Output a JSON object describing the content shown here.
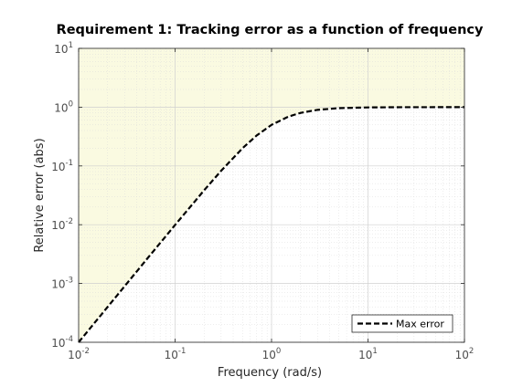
{
  "chart_data": {
    "type": "line",
    "title": "Requirement 1: Tracking error as a function of frequency",
    "xlabel": "Frequency (rad/s)",
    "ylabel": "Relative error (abs)",
    "xscale": "log",
    "yscale": "log",
    "xlim": [
      0.01,
      100
    ],
    "ylim": [
      0.0001,
      10
    ],
    "grid": true,
    "minor_grid": true,
    "x_ticks": [
      {
        "value": 0.01,
        "base": "10",
        "exp": "-2"
      },
      {
        "value": 0.1,
        "base": "10",
        "exp": "-1"
      },
      {
        "value": 1,
        "base": "10",
        "exp": "0"
      },
      {
        "value": 10,
        "base": "10",
        "exp": "1"
      },
      {
        "value": 100,
        "base": "10",
        "exp": "2"
      }
    ],
    "y_ticks": [
      {
        "value": 0.0001,
        "base": "10",
        "exp": "-4"
      },
      {
        "value": 0.001,
        "base": "10",
        "exp": "-3"
      },
      {
        "value": 0.01,
        "base": "10",
        "exp": "-2"
      },
      {
        "value": 0.1,
        "base": "10",
        "exp": "-1"
      },
      {
        "value": 1,
        "base": "10",
        "exp": "0"
      },
      {
        "value": 10,
        "base": "10",
        "exp": "1"
      }
    ],
    "series": [
      {
        "name": "Max error",
        "style": "dashed",
        "color": "#000000",
        "x": [
          0.01,
          0.02,
          0.03,
          0.05,
          0.1,
          0.2,
          0.3,
          0.5,
          0.7,
          1,
          1.5,
          2,
          3,
          5,
          10,
          20,
          50,
          100
        ],
        "y": [
          0.0001,
          0.0004,
          0.0009,
          0.0025,
          0.0099,
          0.0385,
          0.0826,
          0.2,
          0.329,
          0.5,
          0.692,
          0.8,
          0.9,
          0.962,
          0.99,
          0.9975,
          0.9996,
          1.0
        ]
      }
    ],
    "shaded_region": {
      "description": "area above the max error curve",
      "color": "#fafae1"
    },
    "legend": {
      "position": "bottom-right",
      "entries": [
        "Max error"
      ]
    },
    "colors": {
      "axes": "#262626",
      "grid": "#dcdcdc",
      "tick_label": "#4d4d4d",
      "line": "#000000"
    }
  }
}
